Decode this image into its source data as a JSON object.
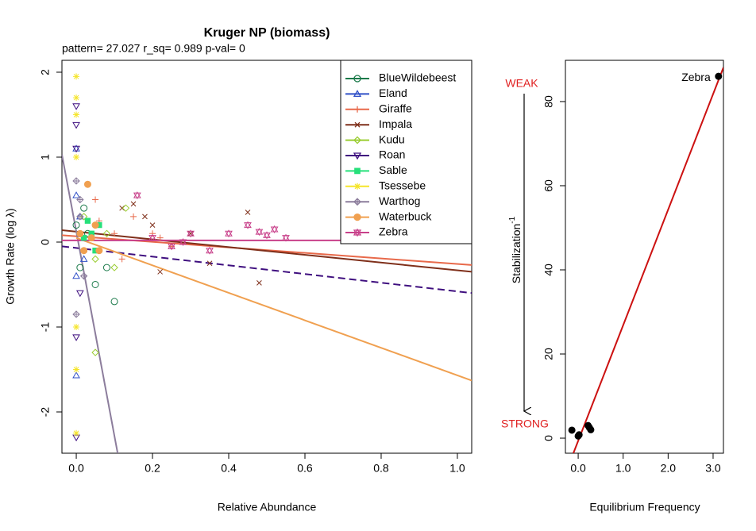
{
  "chart_data": [
    {
      "type": "scatter",
      "title": "Kruger NP (biomass)",
      "subtitle": "pattern= 27.027 r_sq= 0.989 p-val= 0",
      "xlabel": "Relative Abundance",
      "ylabel": "Growth Rate (log λ)",
      "xlim": [
        -0.0376,
        1.0376
      ],
      "ylim": [
        -2.486,
        2.14
      ],
      "xticks": [
        {
          "value": 0,
          "label": "0.0"
        },
        {
          "value": 0.2,
          "label": "0.2"
        },
        {
          "value": 0.4,
          "label": "0.4"
        },
        {
          "value": 0.6,
          "label": "0.6"
        },
        {
          "value": 0.8,
          "label": "0.8"
        },
        {
          "value": 1,
          "label": "1.0"
        }
      ],
      "yticks": [
        -2,
        -1,
        0,
        1,
        2
      ],
      "legend": "top-right",
      "series": [
        {
          "name": "BlueWildebeest",
          "color": "#1b7a4a",
          "marker": "circle",
          "x": [
            0,
            0.01,
            0.03,
            0.05,
            0.08,
            0.1,
            0.02
          ],
          "values": [
            0.2,
            -0.3,
            0.1,
            -0.5,
            -0.3,
            -0.7,
            0.4
          ]
        },
        {
          "name": "Eland",
          "color": "#3050c8",
          "marker": "triangle",
          "x": [
            0,
            0,
            0,
            0,
            0.01,
            0.02
          ],
          "values": [
            1.1,
            -1.57,
            0.55,
            -0.4,
            0.3,
            -0.2
          ]
        },
        {
          "name": "Giraffe",
          "color": "#e8694a",
          "marker": "plus",
          "x": [
            0.05,
            0.1,
            0.15,
            0.2,
            0.22,
            0.25,
            0.06,
            0.12
          ],
          "values": [
            0.5,
            0.1,
            0.3,
            0.1,
            0.05,
            -0.05,
            0.25,
            -0.2
          ],
          "fit_x": [
            -0.0376,
            1.0376
          ],
          "fit_y": [
            0.08,
            -0.27
          ]
        },
        {
          "name": "Impala",
          "color": "#7f2f1a",
          "marker": "x",
          "x": [
            0.12,
            0.15,
            0.2,
            0.3,
            0.45,
            0.48,
            0.22,
            0.18,
            0.35
          ],
          "values": [
            0.4,
            0.45,
            0.2,
            0.1,
            0.35,
            -0.48,
            -0.35,
            0.3,
            -0.25
          ],
          "fit_x": [
            -0.0376,
            1.0376
          ],
          "fit_y": [
            0.14,
            -0.35
          ]
        },
        {
          "name": "Kudu",
          "color": "#9acd32",
          "marker": "diamond",
          "x": [
            0.02,
            0.05,
            0.08,
            0.05,
            0.1,
            0.13
          ],
          "values": [
            0.3,
            -0.2,
            0.1,
            -1.3,
            -0.3,
            0.4
          ]
        },
        {
          "name": "Roan",
          "color": "#3f0f7f",
          "marker": "triangle-down",
          "dashed": true,
          "x": [
            0,
            0,
            0,
            0,
            0,
            0.01
          ],
          "values": [
            1.6,
            1.38,
            -2.3,
            -1.12,
            1.1,
            -0.6
          ],
          "fit_x": [
            -0.0376,
            1.0376
          ],
          "fit_y": [
            -0.05,
            -0.6
          ]
        },
        {
          "name": "Sable",
          "color": "#26e07a",
          "marker": "square",
          "x": [
            0.03,
            0.04,
            0.05,
            0.02,
            0.06
          ],
          "values": [
            0.25,
            0.1,
            -0.1,
            0.05,
            0.2
          ]
        },
        {
          "name": "Tsessebe",
          "color": "#f5e52a",
          "marker": "asterisk",
          "x": [
            0,
            0,
            0,
            0,
            0,
            0,
            0
          ],
          "values": [
            1.95,
            1.7,
            1.5,
            -2.25,
            -1.5,
            -1.0,
            1.0
          ]
        },
        {
          "name": "Warthog",
          "color": "#8c7d9c",
          "marker": "diamond-plus",
          "x": [
            0,
            0.01,
            0,
            0.02,
            0.01
          ],
          "values": [
            0.72,
            0.3,
            -0.85,
            -0.4,
            0.5
          ],
          "fit_x": [
            -0.0376,
            0.1086
          ],
          "fit_y": [
            1.03,
            -2.486
          ]
        },
        {
          "name": "Waterbuck",
          "color": "#f0a050",
          "marker": "dot",
          "x": [
            0.01,
            0.02,
            0.05,
            0.04,
            0.03,
            0.06
          ],
          "values": [
            0.1,
            -0.1,
            0.2,
            0.05,
            0.68,
            -0.1
          ],
          "fit_x": [
            0,
            1.0376
          ],
          "fit_y": [
            0.05,
            -1.63
          ]
        },
        {
          "name": "Zebra",
          "color": "#c8408a",
          "marker": "star",
          "x": [
            0.16,
            0.2,
            0.25,
            0.3,
            0.4,
            0.45,
            0.48,
            0.5,
            0.52,
            0.55,
            0.35,
            0.28
          ],
          "values": [
            0.55,
            0.05,
            -0.05,
            0.1,
            0.1,
            0.2,
            0.12,
            0.08,
            0.15,
            0.05,
            -0.1,
            0.0
          ],
          "fit_x": [
            -0.0376,
            1.0376
          ],
          "fit_y": [
            0.02,
            0.02
          ]
        }
      ]
    },
    {
      "type": "scatter",
      "xlabel": "Equilibrium Frequency",
      "ylabel": "Stabilization",
      "ylabel_sup": "-1",
      "weak_label": "WEAK",
      "strong_label": "STRONG",
      "xlim": [
        -0.284,
        3.23
      ],
      "ylim": [
        -3.58,
        89.8
      ],
      "xticks": [
        {
          "value": 0,
          "label": "0.0"
        },
        {
          "value": 1,
          "label": "1.0"
        },
        {
          "value": 2,
          "label": "2.0"
        },
        {
          "value": 3,
          "label": "3.0"
        }
      ],
      "yticks": [
        0,
        20,
        40,
        60,
        80
      ],
      "color": "#000000",
      "x": [
        -0.14,
        0,
        0.02,
        0.22,
        0.25,
        0.28,
        3.12
      ],
      "values": [
        1.9,
        0.5,
        0.8,
        3,
        2.5,
        2,
        86
      ],
      "fit_color": "#cc1111",
      "fit_x": [
        -0.107,
        3.23
      ],
      "fit_y": [
        -3.58,
        88.1
      ],
      "annotations": [
        {
          "text": "Zebra",
          "x": 3.12,
          "y": 86
        }
      ]
    }
  ]
}
